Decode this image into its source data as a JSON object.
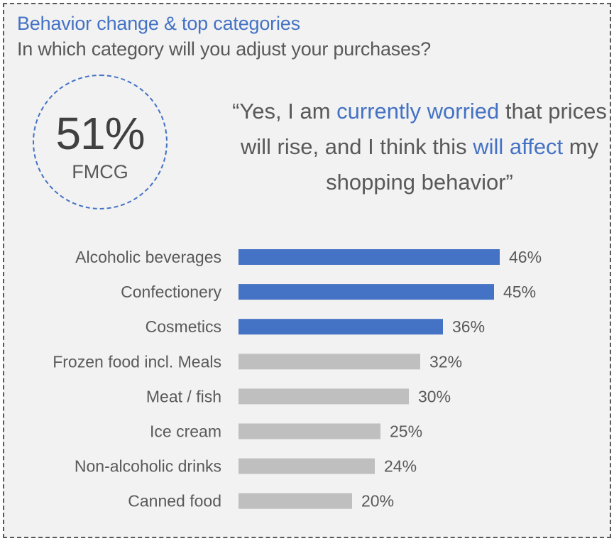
{
  "header": {
    "title": "Behavior change & top categories",
    "subtitle": "In which category will you adjust your purchases?"
  },
  "highlight": {
    "value": "51%",
    "label": "FMCG"
  },
  "quote": {
    "open": "“Yes, I am ",
    "emph1": "currently worried",
    "mid1": " that prices will rise, and I think this ",
    "emph2": "will affect",
    "end": " my shopping behavior”"
  },
  "colors": {
    "accent": "#4472c4",
    "neutral": "#bfbfbf",
    "text": "#595959"
  },
  "chart_data": {
    "type": "bar",
    "orientation": "horizontal",
    "categories": [
      "Alcoholic beverages",
      "Confectionery",
      "Cosmetics",
      "Frozen food incl. Meals",
      "Meat / fish",
      "Ice cream",
      "Non-alcoholic drinks",
      "Canned food"
    ],
    "values": [
      46,
      45,
      36,
      32,
      30,
      25,
      24,
      20
    ],
    "value_labels": [
      "46%",
      "45%",
      "36%",
      "32%",
      "30%",
      "25%",
      "24%",
      "20%"
    ],
    "highlighted": [
      true,
      true,
      true,
      false,
      false,
      false,
      false,
      false
    ],
    "unit": "%",
    "xlim": [
      0,
      46
    ],
    "grid": false,
    "legend": "none"
  }
}
